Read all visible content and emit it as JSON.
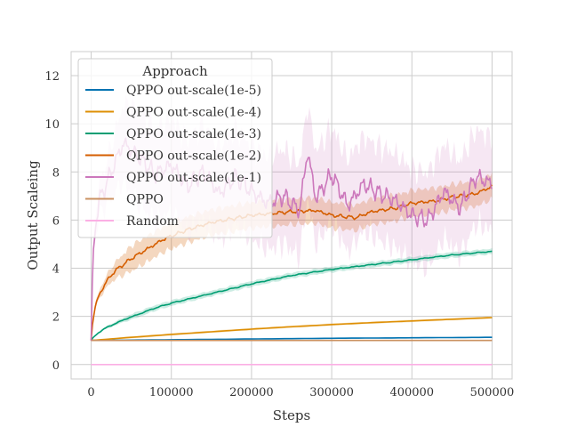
{
  "chart_data": {
    "type": "line",
    "title": "",
    "xlabel": "Steps",
    "ylabel": "Output Scaleing",
    "xlim": [
      -25000,
      525000
    ],
    "ylim": [
      -0.6,
      13.0
    ],
    "xticks": [
      0,
      100000,
      200000,
      300000,
      400000,
      500000
    ],
    "xtick_labels": [
      "0",
      "100000",
      "200000",
      "300000",
      "400000",
      "500000"
    ],
    "yticks": [
      0,
      2,
      4,
      6,
      8,
      10,
      12
    ],
    "ytick_labels": [
      "0",
      "2",
      "4",
      "6",
      "8",
      "10",
      "12"
    ],
    "grid": true,
    "legend": {
      "title": "Approach",
      "placement": "upper-left"
    },
    "series": [
      {
        "name": "QPPO out-scale(1e-5)",
        "color": "#0173b2",
        "x": [
          0,
          100000,
          200000,
          300000,
          400000,
          500000
        ],
        "y": [
          1.0,
          1.03,
          1.06,
          1.09,
          1.11,
          1.13
        ]
      },
      {
        "name": "QPPO out-scale(1e-4)",
        "color": "#de8f05",
        "x": [
          0,
          50000,
          100000,
          150000,
          200000,
          250000,
          300000,
          350000,
          400000,
          450000,
          500000
        ],
        "y": [
          1.0,
          1.13,
          1.25,
          1.36,
          1.47,
          1.57,
          1.66,
          1.74,
          1.81,
          1.88,
          1.95
        ]
      },
      {
        "name": "QPPO out-scale(1e-3)",
        "color": "#029e73",
        "x": [
          0,
          5000,
          10000,
          20000,
          40000,
          60000,
          80000,
          100000,
          150000,
          200000,
          250000,
          300000,
          350000,
          400000,
          450000,
          500000
        ],
        "y": [
          1.0,
          1.2,
          1.35,
          1.55,
          1.85,
          2.1,
          2.35,
          2.55,
          2.95,
          3.35,
          3.7,
          3.95,
          4.15,
          4.35,
          4.55,
          4.7
        ]
      },
      {
        "name": "QPPO out-scale(1e-2)",
        "color": "#d55e00",
        "x": [
          0,
          2000,
          5000,
          10000,
          20000,
          30000,
          50000,
          70000,
          90000,
          120000,
          150000,
          200000,
          250000,
          280000,
          300000,
          330000,
          350000,
          380000,
          400000,
          430000,
          450000,
          480000,
          500000
        ],
        "y": [
          1.0,
          1.8,
          2.4,
          2.9,
          3.5,
          3.9,
          4.4,
          4.8,
          5.2,
          5.6,
          5.9,
          6.2,
          6.35,
          6.4,
          6.2,
          6.1,
          6.35,
          6.5,
          6.7,
          6.8,
          6.95,
          7.1,
          7.4
        ]
      },
      {
        "name": "QPPO out-scale(1e-1)",
        "color": "#cc78bc",
        "x": [
          0,
          2000,
          5000,
          10000,
          20000,
          30000,
          40000,
          60000,
          80000,
          100000,
          120000,
          140000,
          160000,
          180000,
          200000,
          220000,
          240000,
          260000,
          270000,
          280000,
          300000,
          320000,
          340000,
          360000,
          380000,
          400000,
          420000,
          440000,
          460000,
          480000,
          500000
        ],
        "y": [
          1.0,
          4.0,
          5.8,
          6.8,
          7.6,
          8.4,
          9.2,
          8.6,
          7.9,
          8.3,
          7.4,
          8.0,
          7.1,
          7.8,
          7.2,
          6.7,
          7.0,
          6.4,
          8.9,
          6.9,
          7.9,
          6.6,
          7.5,
          7.1,
          6.8,
          6.2,
          6.0,
          7.2,
          6.5,
          7.8,
          7.5
        ]
      },
      {
        "name": "QPPO",
        "color": "#ca9161",
        "x": [
          0,
          500000
        ],
        "y": [
          1.0,
          1.0
        ]
      },
      {
        "name": "Random",
        "color": "#fbafe4",
        "x": [
          0,
          500000
        ],
        "y": [
          0.0,
          0.0
        ]
      }
    ]
  }
}
